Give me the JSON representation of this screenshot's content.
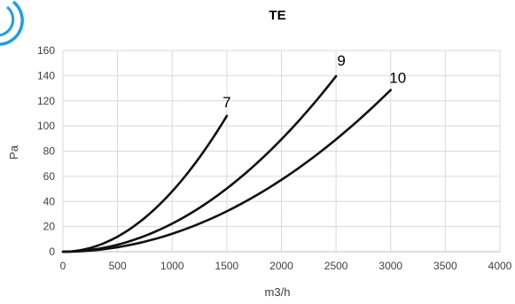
{
  "chart_data": {
    "type": "line",
    "title": "TE",
    "xlabel": "m3/h",
    "ylabel": "Pa",
    "xlim": [
      0,
      4000
    ],
    "ylim": [
      0,
      160
    ],
    "x_ticks": [
      "0",
      "500",
      "1000",
      "1500",
      "2000",
      "2500",
      "3000",
      "3500",
      "4000"
    ],
    "y_ticks": [
      "0",
      "20",
      "40",
      "60",
      "80",
      "100",
      "120",
      "140",
      "160"
    ],
    "grid": true,
    "legend": "none",
    "series": [
      {
        "name": "7",
        "x": [
          0,
          250,
          500,
          750,
          1000,
          1250,
          1500
        ],
        "y": [
          0,
          3,
          12,
          27,
          48,
          75,
          108
        ]
      },
      {
        "name": "9",
        "x": [
          0,
          500,
          1000,
          1500,
          2000,
          2500
        ],
        "y": [
          0,
          6,
          22,
          50,
          89,
          140
        ]
      },
      {
        "name": "10",
        "x": [
          0,
          500,
          1000,
          1500,
          2000,
          2500,
          3000
        ],
        "y": [
          0,
          4,
          14,
          32,
          57,
          89,
          129
        ]
      }
    ],
    "colors": {
      "line": "#111111",
      "grid": "#d9d9d9",
      "text": "#404040"
    }
  },
  "logo": {
    "color": "#1aa0e6"
  }
}
